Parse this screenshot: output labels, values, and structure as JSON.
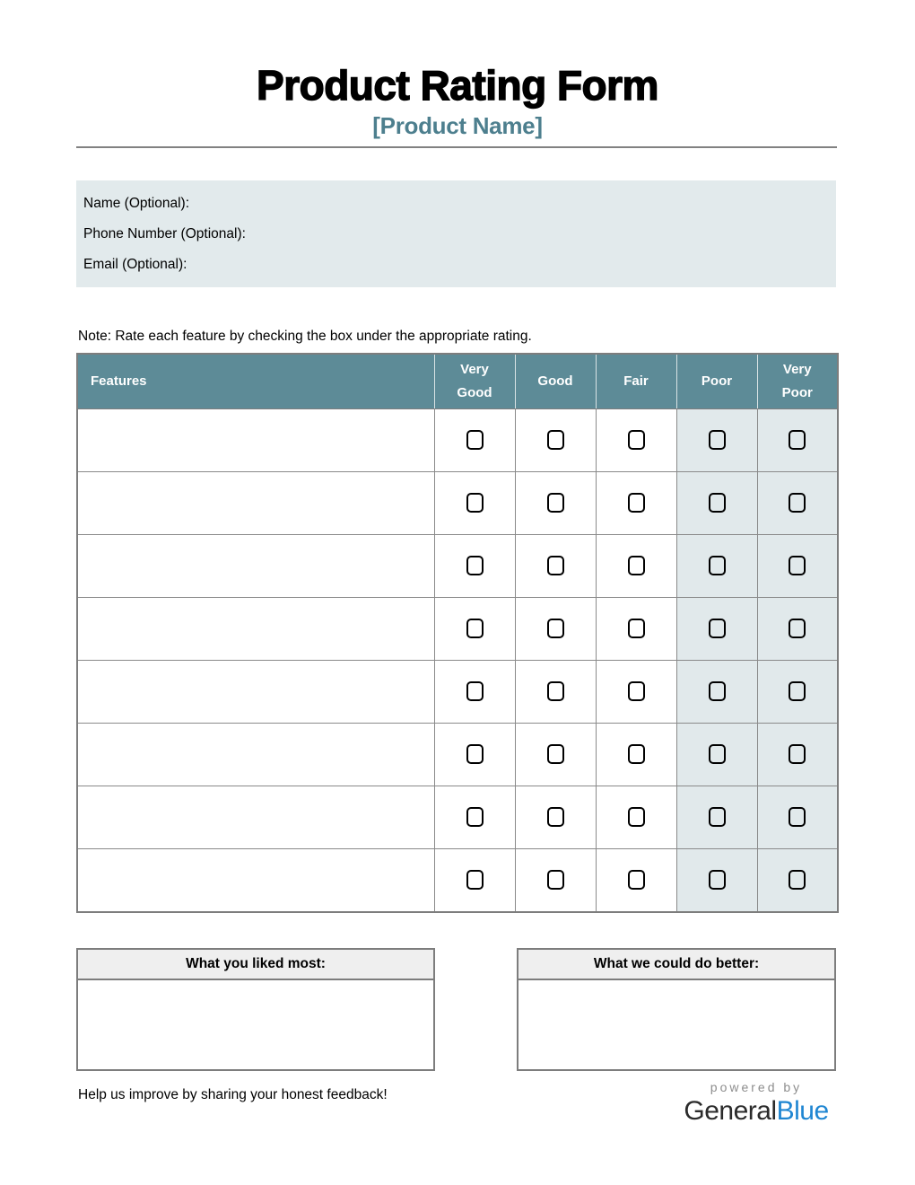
{
  "page": {
    "title": "Product Rating Form",
    "subtitle": "[Product Name]"
  },
  "contact": {
    "fields": [
      {
        "label": "Name (Optional):"
      },
      {
        "label": "Phone Number (Optional):"
      },
      {
        "label": "Email (Optional):"
      }
    ]
  },
  "note": "Note: Rate each feature by checking the box under the appropriate rating.",
  "rating_table": {
    "feature_header": "Features",
    "rating_headers": [
      "Very Good",
      "Good",
      "Fair",
      "Poor",
      "Very Poor"
    ],
    "shaded_columns": [
      "Poor",
      "Very Poor"
    ],
    "rows": [
      {
        "feature": ""
      },
      {
        "feature": ""
      },
      {
        "feature": ""
      },
      {
        "feature": ""
      },
      {
        "feature": ""
      },
      {
        "feature": ""
      },
      {
        "feature": ""
      },
      {
        "feature": ""
      }
    ]
  },
  "comments": {
    "liked_header": "What you liked most:",
    "better_header": "What we could do better:"
  },
  "footer": {
    "message": "Help us improve by sharing your honest feedback!",
    "powered_by": "powered by",
    "brand_general": "General",
    "brand_blue": "Blue"
  },
  "colors": {
    "table_header_bg": "#5d8b97",
    "subtitle_text": "#4d7f8e",
    "contact_box_bg": "#e2eaec",
    "shaded_cell_bg": "#e1e9eb",
    "brand_blue": "#1f86d2",
    "border_gray": "#7d7d7d"
  }
}
